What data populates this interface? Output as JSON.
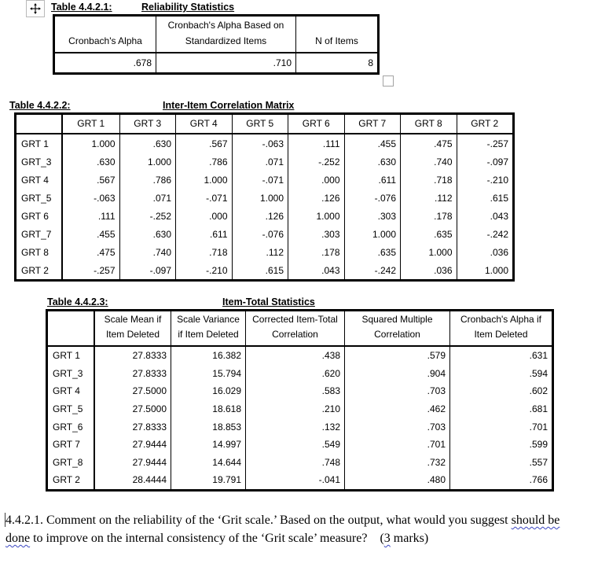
{
  "colors": {
    "text": "#000000",
    "squiggle_blue": "#3a45c0",
    "handle_border": "#a3a3a3"
  },
  "icons": {
    "move_handle": "four-way-move-arrow-icon",
    "resize_handle": "table-resize-square"
  },
  "table1": {
    "label": "Table 4.4.2.1:",
    "title": "Reliability Statistics",
    "columns": [
      "Cronbach's Alpha",
      "Cronbach's Alpha Based on Standardized Items",
      "N of Items"
    ],
    "rows": [
      {
        "values": [
          ".678",
          ".710",
          "8"
        ]
      }
    ]
  },
  "table2": {
    "label": "Table 4.4.2.2:",
    "title": "Inter-Item Correlation Matrix",
    "columns": [
      "",
      "GRT 1",
      "GRT 3",
      "GRT 4",
      "GRT 5",
      "GRT 6",
      "GRT 7",
      "GRT 8",
      "GRT 2"
    ],
    "rows": [
      {
        "label": "GRT 1",
        "values": [
          "1.000",
          ".630",
          ".567",
          "-.063",
          ".111",
          ".455",
          ".475",
          "-.257"
        ]
      },
      {
        "label": "GRT_3",
        "values": [
          ".630",
          "1.000",
          ".786",
          ".071",
          "-.252",
          ".630",
          ".740",
          "-.097"
        ]
      },
      {
        "label": "GRT 4",
        "values": [
          ".567",
          ".786",
          "1.000",
          "-.071",
          ".000",
          ".611",
          ".718",
          "-.210"
        ]
      },
      {
        "label": "GRT_5",
        "values": [
          "-.063",
          ".071",
          "-.071",
          "1.000",
          ".126",
          "-.076",
          ".112",
          ".615"
        ]
      },
      {
        "label": "GRT 6",
        "values": [
          ".111",
          "-.252",
          ".000",
          ".126",
          "1.000",
          ".303",
          ".178",
          ".043"
        ]
      },
      {
        "label": "GRT_7",
        "values": [
          ".455",
          ".630",
          ".611",
          "-.076",
          ".303",
          "1.000",
          ".635",
          "-.242"
        ]
      },
      {
        "label": "GRT 8",
        "values": [
          ".475",
          ".740",
          ".718",
          ".112",
          ".178",
          ".635",
          "1.000",
          ".036"
        ]
      },
      {
        "label": "GRT 2",
        "values": [
          "-.257",
          "-.097",
          "-.210",
          ".615",
          ".043",
          "-.242",
          ".036",
          "1.000"
        ]
      }
    ]
  },
  "table3": {
    "label": "Table 4.4.2.3:",
    "title": "Item-Total Statistics",
    "columns": [
      "",
      "Scale Mean if Item Deleted",
      "Scale Variance if Item Deleted",
      "Corrected Item-Total Correlation",
      "Squared Multiple Correlation",
      "Cronbach's Alpha if Item Deleted"
    ],
    "rows": [
      {
        "label": "GRT 1",
        "values": [
          "27.8333",
          "16.382",
          ".438",
          ".579",
          ".631"
        ]
      },
      {
        "label": "GRT_3",
        "values": [
          "27.8333",
          "15.794",
          ".620",
          ".904",
          ".594"
        ]
      },
      {
        "label": "GRT 4",
        "values": [
          "27.5000",
          "16.029",
          ".583",
          ".703",
          ".602"
        ]
      },
      {
        "label": "GRT_5",
        "values": [
          "27.5000",
          "18.618",
          ".210",
          ".462",
          ".681"
        ]
      },
      {
        "label": "GRT_6",
        "values": [
          "27.8333",
          "18.853",
          ".132",
          ".703",
          ".701"
        ]
      },
      {
        "label": "GRT 7",
        "values": [
          "27.9444",
          "14.997",
          ".549",
          ".701",
          ".599"
        ]
      },
      {
        "label": "GRT_8",
        "values": [
          "27.9444",
          "14.644",
          ".748",
          ".732",
          ".557"
        ]
      },
      {
        "label": "GRT 2",
        "values": [
          "28.4444",
          "19.791",
          "-.041",
          ".480",
          ".766"
        ]
      }
    ]
  },
  "question": {
    "parts": [
      {
        "t": "4.4.2.1. Comment on the reliability of the ‘Grit scale.’ Based on the output, what would you suggest ",
        "s": "plain"
      },
      {
        "t": "should be",
        "s": "squiggle"
      },
      {
        "s": "break"
      },
      {
        "t": "done",
        "s": "squiggle"
      },
      {
        "t": " to improve on the internal consistency of the ‘Grit scale’ measure?    (",
        "s": "plain"
      },
      {
        "t": "3",
        "s": "squiggle"
      },
      {
        "t": " marks)",
        "s": "plain"
      }
    ]
  }
}
